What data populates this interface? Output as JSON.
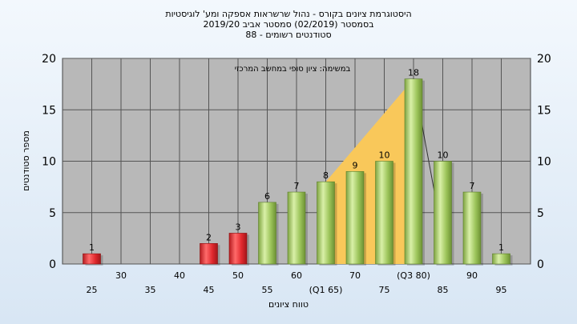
{
  "chart_data": {
    "type": "bar",
    "title": "היסטוגרמת ציונים בקורס - נהול שרשראות אספקה ומע' לוגיסטיות",
    "subtitle_1": "בסמסטר  (02/2019)  סמסטר אביב 2019/20",
    "subtitle_2": "סטודנטים רשומים - 88",
    "annotation": "במשימה: ציון סופי במחשב המרכזי",
    "xlabel": "טווח ציונים",
    "ylabel": "מספר סטודנטים",
    "ylim": [
      0,
      20
    ],
    "yticks": [
      0,
      5,
      10,
      15,
      20
    ],
    "grid": true,
    "x_tick_labels": [
      {
        "x": 25,
        "label": "25",
        "row": 2
      },
      {
        "x": 30,
        "label": "30",
        "row": 1
      },
      {
        "x": 35,
        "label": "35",
        "row": 2
      },
      {
        "x": 40,
        "label": "40",
        "row": 1
      },
      {
        "x": 45,
        "label": "45",
        "row": 2
      },
      {
        "x": 50,
        "label": "50",
        "row": 1
      },
      {
        "x": 55,
        "label": "55",
        "row": 2
      },
      {
        "x": 60,
        "label": "60",
        "row": 1
      },
      {
        "x": 65,
        "label": "(Q1 65)",
        "row": 2
      },
      {
        "x": 70,
        "label": "70",
        "row": 1
      },
      {
        "x": 75,
        "label": "75",
        "row": 2
      },
      {
        "x": 80,
        "label": "(Q3 80)",
        "row": 1
      },
      {
        "x": 85,
        "label": "85",
        "row": 2
      },
      {
        "x": 90,
        "label": "90",
        "row": 1
      },
      {
        "x": 95,
        "label": "95",
        "row": 2
      }
    ],
    "bars": [
      {
        "x": 25,
        "value": 1,
        "status": "fail"
      },
      {
        "x": 45,
        "value": 2,
        "status": "fail"
      },
      {
        "x": 50,
        "value": 3,
        "status": "fail"
      },
      {
        "x": 55,
        "value": 6,
        "status": "pass"
      },
      {
        "x": 60,
        "value": 7,
        "status": "pass"
      },
      {
        "x": 65,
        "value": 8,
        "status": "pass"
      },
      {
        "x": 70,
        "value": 9,
        "status": "pass"
      },
      {
        "x": 75,
        "value": 10,
        "status": "pass"
      },
      {
        "x": 80,
        "value": 18,
        "status": "pass"
      },
      {
        "x": 85,
        "value": 10,
        "status": "pass"
      },
      {
        "x": 90,
        "value": 7,
        "status": "pass"
      },
      {
        "x": 95,
        "value": 1,
        "status": "pass"
      }
    ],
    "quartile_band": {
      "from": 65,
      "to": 80
    },
    "colors": {
      "plot_background": "#b8b8b8",
      "quartile_fill": "#f9c85a",
      "pass_bar": "#9cc45a",
      "fail_bar": "#d8262b",
      "grid": "#555555"
    }
  }
}
